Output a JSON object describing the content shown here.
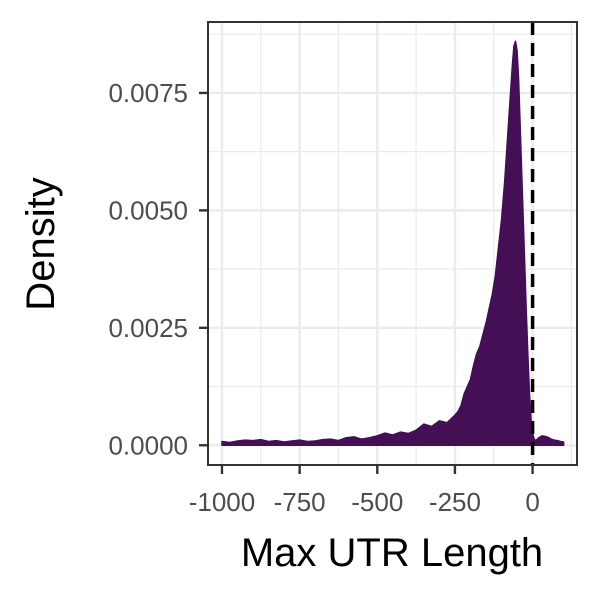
{
  "chart_data": {
    "type": "area",
    "title": "",
    "xlabel": "Max UTR Length",
    "ylabel": "Density",
    "xlim": [
      -1045,
      143
    ],
    "ylim": [
      -0.00042,
      0.00901
    ],
    "x_ticks": [
      -1000,
      -750,
      -500,
      -250,
      0
    ],
    "x_tick_labels": [
      "-1000",
      "-750",
      "-500",
      "-250",
      "0"
    ],
    "y_ticks": [
      0.0,
      0.0025,
      0.005,
      0.0075
    ],
    "y_tick_labels": [
      "0.0000",
      "0.0025",
      "0.0050",
      "0.0075"
    ],
    "grid": true,
    "vline": {
      "x": 0,
      "style": "dashed",
      "color": "#000000"
    },
    "fill_color": "#440f54",
    "series": [
      {
        "name": "density",
        "x": [
          -1000,
          -975,
          -950,
          -925,
          -900,
          -875,
          -850,
          -825,
          -800,
          -775,
          -750,
          -725,
          -700,
          -675,
          -650,
          -625,
          -600,
          -575,
          -550,
          -525,
          -500,
          -475,
          -450,
          -425,
          -400,
          -375,
          -350,
          -325,
          -300,
          -275,
          -250,
          -240,
          -230,
          -220,
          -210,
          -200,
          -190,
          -180,
          -170,
          -160,
          -150,
          -140,
          -130,
          -120,
          -110,
          -100,
          -90,
          -80,
          -70,
          -65,
          -60,
          -55,
          -50,
          -45,
          -40,
          -35,
          -30,
          -25,
          -20,
          -15,
          -10,
          -5,
          0,
          5,
          10,
          20,
          30,
          40,
          50,
          60,
          70,
          80,
          90,
          100
        ],
        "y": [
          8e-05,
          6e-05,
          9e-05,
          0.00011,
          0.0001,
          0.00012,
          8e-05,
          0.0001,
          7e-05,
          9e-05,
          0.00011,
          8e-05,
          9e-05,
          0.00012,
          0.00013,
          0.0001,
          0.00016,
          0.00018,
          0.00013,
          0.00016,
          0.0002,
          0.00026,
          0.00022,
          0.00028,
          0.00025,
          0.00032,
          0.00045,
          0.0004,
          0.00052,
          0.00048,
          0.00064,
          0.00072,
          0.00085,
          0.0011,
          0.00125,
          0.0014,
          0.0017,
          0.00195,
          0.0021,
          0.00235,
          0.0026,
          0.0029,
          0.0032,
          0.0036,
          0.0042,
          0.0048,
          0.0056,
          0.0066,
          0.0076,
          0.0081,
          0.0085,
          0.0086,
          0.0084,
          0.0078,
          0.0068,
          0.0058,
          0.0048,
          0.0038,
          0.0028,
          0.0019,
          0.0011,
          0.00055,
          0.00025,
          0.00013,
          0.0001,
          0.00016,
          0.0002,
          0.00019,
          0.00017,
          0.00013,
          0.00011,
          0.0001,
          8e-05,
          7e-05
        ]
      }
    ]
  }
}
